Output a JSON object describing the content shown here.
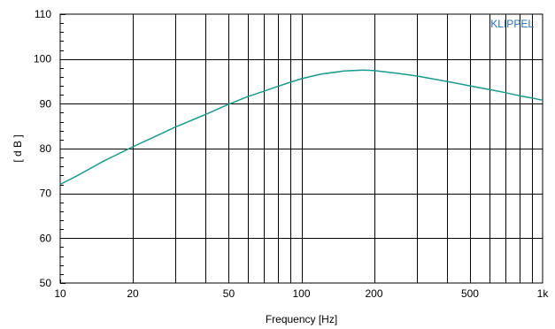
{
  "chart_data": {
    "type": "line",
    "title": "",
    "xlabel": "Frequency [Hz]",
    "ylabel": "[ d B ]",
    "xscale": "log",
    "xlim": [
      10,
      1000
    ],
    "ylim": [
      50,
      110
    ],
    "grid": true,
    "x_ticks": [
      10,
      20,
      50,
      100,
      200,
      500,
      1000
    ],
    "x_tick_labels": [
      "10",
      "20",
      "50",
      "100",
      "200",
      "500",
      "1k"
    ],
    "y_ticks": [
      50,
      60,
      70,
      80,
      90,
      100,
      110
    ],
    "y_tick_labels": [
      "50",
      "60",
      "70",
      "80",
      "90",
      "100",
      "110"
    ],
    "brand_label": "KLIPPEL",
    "colors": {
      "curve": "#1a9a8c",
      "brand": "#2b6cb0",
      "grid": "#000000"
    },
    "series": [
      {
        "x": [
          10,
          12,
          15,
          20,
          25,
          30,
          40,
          50,
          60,
          70,
          80,
          90,
          100,
          120,
          150,
          180,
          200,
          250,
          300,
          400,
          500,
          600,
          700,
          800,
          900,
          1000
        ],
        "y": [
          72.0,
          74.2,
          77.1,
          80.4,
          82.8,
          84.8,
          87.6,
          89.9,
          91.6,
          92.8,
          93.9,
          94.8,
          95.6,
          96.6,
          97.3,
          97.5,
          97.4,
          96.8,
          96.2,
          95.0,
          94.0,
          93.2,
          92.5,
          91.8,
          91.3,
          90.8
        ]
      }
    ]
  }
}
